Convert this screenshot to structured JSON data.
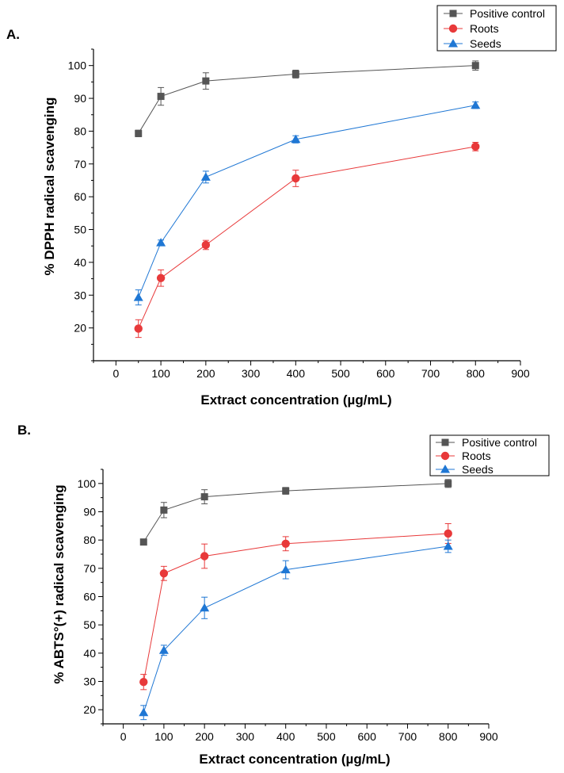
{
  "colors": {
    "positive": "#555555",
    "roots": "#e8393a",
    "seeds": "#1f77d4"
  },
  "chart_data": [
    {
      "type": "line",
      "panel_label": "A.",
      "xlabel": "Extract concentration (µg/mL)",
      "ylabel": "% DPPH  radical scavenging",
      "xlim": [
        -50,
        900
      ],
      "ylim": [
        10,
        105
      ],
      "xticks": [
        0,
        100,
        200,
        300,
        400,
        500,
        600,
        700,
        800,
        900
      ],
      "xtick_labels": [
        "0",
        "100",
        "200",
        "300",
        "400",
        "500",
        "600",
        "700",
        "800",
        "900"
      ],
      "yticks": [
        20,
        30,
        40,
        50,
        60,
        70,
        80,
        90,
        100
      ],
      "ytick_labels": [
        "20",
        "30",
        "40",
        "50",
        "60",
        "70",
        "80",
        "90",
        "100"
      ],
      "legend": "top-right",
      "x": [
        50,
        100,
        200,
        400,
        800
      ],
      "series": [
        {
          "name": "Positive control",
          "marker": "square",
          "color_key": "positive",
          "values": [
            79.3,
            90.6,
            95.3,
            97.4,
            100.0
          ],
          "errors": [
            1.0,
            2.7,
            2.5,
            1.2,
            1.4
          ]
        },
        {
          "name": "Roots",
          "marker": "circle",
          "color_key": "roots",
          "values": [
            19.8,
            35.2,
            45.3,
            65.6,
            75.3
          ],
          "errors": [
            2.7,
            2.5,
            1.4,
            2.5,
            1.3
          ]
        },
        {
          "name": "Seeds",
          "marker": "triangle",
          "color_key": "seeds",
          "values": [
            29.3,
            46.0,
            66.0,
            77.5,
            87.9
          ],
          "errors": [
            2.3,
            0.8,
            1.8,
            1.1,
            1.0
          ]
        }
      ]
    },
    {
      "type": "line",
      "panel_label": "B.",
      "xlabel": "Extract concentration (µg/mL)",
      "ylabel": "% ABTS°(+) radical scavenging",
      "xlim": [
        -50,
        900
      ],
      "ylim": [
        15,
        105
      ],
      "xticks": [
        0,
        100,
        200,
        300,
        400,
        500,
        600,
        700,
        800,
        900
      ],
      "xtick_labels": [
        "0",
        "100",
        "200",
        "300",
        "400",
        "500",
        "600",
        "700",
        "800",
        "900"
      ],
      "yticks": [
        20,
        30,
        40,
        50,
        60,
        70,
        80,
        90,
        100
      ],
      "ytick_labels": [
        "20",
        "30",
        "40",
        "50",
        "60",
        "70",
        "80",
        "90",
        "100"
      ],
      "legend": "top-right",
      "x": [
        50,
        100,
        200,
        400,
        800
      ],
      "series": [
        {
          "name": "Positive control",
          "marker": "square",
          "color_key": "positive",
          "values": [
            79.3,
            90.6,
            95.3,
            97.4,
            100.0
          ],
          "errors": [
            1.0,
            2.7,
            2.5,
            1.2,
            1.4
          ]
        },
        {
          "name": "Roots",
          "marker": "circle",
          "color_key": "roots",
          "values": [
            29.8,
            68.2,
            74.3,
            78.7,
            82.3
          ],
          "errors": [
            2.7,
            2.5,
            4.3,
            2.5,
            3.5
          ]
        },
        {
          "name": "Seeds",
          "marker": "triangle",
          "color_key": "seeds",
          "values": [
            19.0,
            41.0,
            56.0,
            69.5,
            77.8
          ],
          "errors": [
            2.5,
            1.8,
            3.8,
            3.2,
            2.2
          ]
        }
      ]
    }
  ]
}
